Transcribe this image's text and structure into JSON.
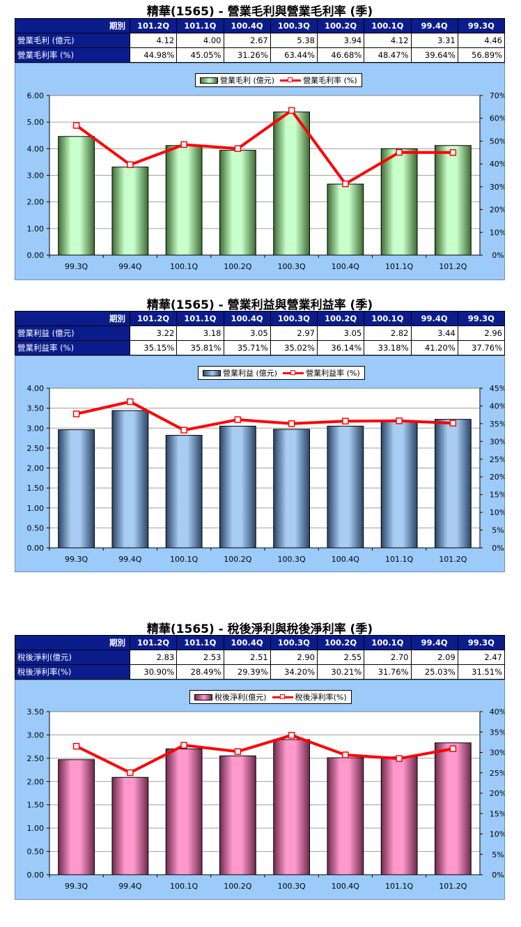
{
  "periods_header": "期別",
  "table_periods": [
    "101.2Q",
    "101.1Q",
    "100.4Q",
    "100.3Q",
    "100.2Q",
    "100.1Q",
    "99.4Q",
    "99.3Q"
  ],
  "charts": [
    {
      "title": "精華(1565) - 營業毛利與營業毛利率 (季)",
      "row1_label": "營業毛利 (億元)",
      "row1_values": [
        "4.12",
        "4.00",
        "2.67",
        "5.38",
        "3.94",
        "4.12",
        "3.31",
        "4.46"
      ],
      "row2_label": "營業毛利率 (%)",
      "row2_values": [
        "44.98%",
        "45.05%",
        "31.26%",
        "63.44%",
        "46.68%",
        "48.47%",
        "39.64%",
        "56.89%"
      ],
      "legend_bar": "營業毛利 (億元)",
      "legend_line": "營業毛利率 (%)",
      "bar_color": "#c8ffcb"
    },
    {
      "title": "精華(1565) - 營業利益與營業利益率 (季)",
      "row1_label": "營業利益 (億元)",
      "row1_values": [
        "3.22",
        "3.18",
        "3.05",
        "2.97",
        "3.05",
        "2.82",
        "3.44",
        "2.96"
      ],
      "row2_label": "營業利益率 (%)",
      "row2_values": [
        "35.15%",
        "35.81%",
        "35.71%",
        "35.02%",
        "36.14%",
        "33.18%",
        "41.20%",
        "37.76%"
      ],
      "legend_bar": "營業利益 (億元)",
      "legend_line": "營業利益率 (%)",
      "bar_color": "#a8ccf2"
    },
    {
      "title": "精華(1565) - 稅後淨利與稅後淨利率 (季)",
      "row1_label": "稅後淨利(億元)",
      "row1_values": [
        "2.83",
        "2.53",
        "2.51",
        "2.90",
        "2.55",
        "2.70",
        "2.09",
        "2.47"
      ],
      "row2_label": "稅後淨利率(%)",
      "row2_values": [
        "30.90%",
        "28.49%",
        "29.39%",
        "34.20%",
        "30.21%",
        "31.76%",
        "25.03%",
        "31.51%"
      ],
      "legend_bar": "稅後淨利(億元)",
      "legend_line": "稅後淨利率(%)",
      "bar_color": "#ff99cc"
    }
  ],
  "chart_data": [
    {
      "type": "bar",
      "categories": [
        "99.3Q",
        "99.4Q",
        "100.1Q",
        "100.2Q",
        "100.3Q",
        "100.4Q",
        "101.1Q",
        "101.2Q"
      ],
      "series": [
        {
          "name": "營業毛利 (億元)",
          "type": "bar",
          "axis": "left",
          "values": [
            4.46,
            3.31,
            4.12,
            3.94,
            5.38,
            2.67,
            4.0,
            4.12
          ]
        },
        {
          "name": "營業毛利率 (%)",
          "type": "line",
          "axis": "right",
          "values": [
            56.89,
            39.64,
            48.47,
            46.68,
            63.44,
            31.26,
            45.05,
            44.98
          ]
        }
      ],
      "y_left": {
        "min": 0,
        "max": 6,
        "step": 1,
        "ticks": [
          "0.00",
          "1.00",
          "2.00",
          "3.00",
          "4.00",
          "5.00",
          "6.00"
        ]
      },
      "y_right": {
        "min": 0,
        "max": 70,
        "step": 10,
        "ticks": [
          "0%",
          "10%",
          "20%",
          "30%",
          "40%",
          "50%",
          "60%",
          "70%"
        ]
      },
      "grid": true,
      "legend": "top-center"
    },
    {
      "type": "bar",
      "categories": [
        "99.3Q",
        "99.4Q",
        "100.1Q",
        "100.2Q",
        "100.3Q",
        "100.4Q",
        "101.1Q",
        "101.2Q"
      ],
      "series": [
        {
          "name": "營業利益 (億元)",
          "type": "bar",
          "axis": "left",
          "values": [
            2.96,
            3.44,
            2.82,
            3.05,
            2.97,
            3.05,
            3.18,
            3.22
          ]
        },
        {
          "name": "營業利益率 (%)",
          "type": "line",
          "axis": "right",
          "values": [
            37.76,
            41.2,
            33.18,
            36.14,
            35.02,
            35.71,
            35.81,
            35.15
          ]
        }
      ],
      "y_left": {
        "min": 0,
        "max": 4,
        "step": 0.5,
        "ticks": [
          "0.00",
          "0.50",
          "1.00",
          "1.50",
          "2.00",
          "2.50",
          "3.00",
          "3.50",
          "4.00"
        ]
      },
      "y_right": {
        "min": 0,
        "max": 45,
        "step": 5,
        "ticks": [
          "0%",
          "5%",
          "10%",
          "15%",
          "20%",
          "25%",
          "30%",
          "35%",
          "40%",
          "45%"
        ]
      },
      "grid": true,
      "legend": "top-center"
    },
    {
      "type": "bar",
      "categories": [
        "99.3Q",
        "99.4Q",
        "100.1Q",
        "100.2Q",
        "100.3Q",
        "100.4Q",
        "101.1Q",
        "101.2Q"
      ],
      "series": [
        {
          "name": "稅後淨利(億元)",
          "type": "bar",
          "axis": "left",
          "values": [
            2.47,
            2.09,
            2.7,
            2.55,
            2.9,
            2.51,
            2.53,
            2.83
          ]
        },
        {
          "name": "稅後淨利率(%)",
          "type": "line",
          "axis": "right",
          "values": [
            31.51,
            25.03,
            31.76,
            30.21,
            34.2,
            29.39,
            28.49,
            30.9
          ]
        }
      ],
      "y_left": {
        "min": 0,
        "max": 3.5,
        "step": 0.5,
        "ticks": [
          "0.00",
          "0.50",
          "1.00",
          "1.50",
          "2.00",
          "2.50",
          "3.00",
          "3.50"
        ]
      },
      "y_right": {
        "min": 0,
        "max": 40,
        "step": 5,
        "ticks": [
          "0%",
          "5%",
          "10%",
          "15%",
          "20%",
          "25%",
          "30%",
          "35%",
          "40%"
        ]
      },
      "grid": true,
      "legend": "top-center"
    }
  ]
}
